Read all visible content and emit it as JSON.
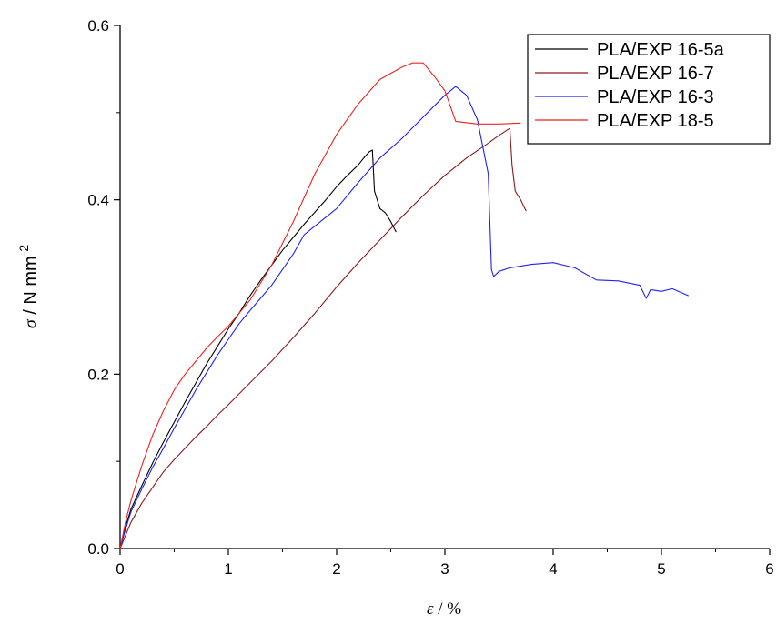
{
  "chart_data": {
    "type": "line",
    "title": "",
    "xlabel_symbol": "ε",
    "xlabel_rest": " / %",
    "ylabel_symbol": "σ",
    "ylabel_rest": " / N mm",
    "ylabel_exp": "-2",
    "xlim": [
      0,
      6
    ],
    "ylim": [
      0,
      0.6
    ],
    "x_ticks": [
      "0",
      "1",
      "2",
      "3",
      "4",
      "5",
      "6"
    ],
    "y_ticks": [
      "0.0",
      "0.2",
      "0.4",
      "0.6"
    ],
    "grid": false,
    "legend_position": "top-right",
    "series": [
      {
        "name": "PLA/EXP 16-5a",
        "color": "#000000",
        "x": [
          0,
          0.05,
          0.1,
          0.2,
          0.3,
          0.4,
          0.5,
          0.6,
          0.7,
          0.8,
          0.9,
          1.0,
          1.1,
          1.2,
          1.3,
          1.4,
          1.5,
          1.6,
          1.7,
          1.8,
          1.9,
          2.0,
          2.1,
          2.2,
          2.25,
          2.3,
          2.33,
          2.35,
          2.4,
          2.45,
          2.5,
          2.55
        ],
        "y": [
          0,
          0.025,
          0.045,
          0.072,
          0.098,
          0.122,
          0.145,
          0.168,
          0.19,
          0.212,
          0.232,
          0.252,
          0.27,
          0.29,
          0.308,
          0.325,
          0.342,
          0.357,
          0.372,
          0.386,
          0.4,
          0.415,
          0.428,
          0.44,
          0.448,
          0.455,
          0.457,
          0.41,
          0.39,
          0.385,
          0.375,
          0.363
        ]
      },
      {
        "name": "PLA/EXP 16-7",
        "color": "#8b1a1a",
        "x": [
          0,
          0.1,
          0.2,
          0.3,
          0.4,
          0.5,
          0.6,
          0.7,
          0.8,
          0.9,
          1.0,
          1.2,
          1.4,
          1.6,
          1.8,
          2.0,
          2.2,
          2.4,
          2.6,
          2.8,
          3.0,
          3.2,
          3.4,
          3.5,
          3.6,
          3.62,
          3.65,
          3.7,
          3.75
        ],
        "y": [
          0,
          0.03,
          0.052,
          0.07,
          0.088,
          0.102,
          0.115,
          0.128,
          0.14,
          0.153,
          0.165,
          0.19,
          0.215,
          0.242,
          0.27,
          0.3,
          0.328,
          0.354,
          0.38,
          0.405,
          0.428,
          0.448,
          0.465,
          0.474,
          0.482,
          0.44,
          0.41,
          0.4,
          0.387
        ]
      },
      {
        "name": "PLA/EXP 16-3",
        "color": "#1f22f5",
        "x": [
          0,
          0.05,
          0.1,
          0.2,
          0.3,
          0.4,
          0.5,
          0.6,
          0.7,
          0.8,
          0.9,
          1.0,
          1.1,
          1.2,
          1.4,
          1.6,
          1.7,
          1.8,
          2.0,
          2.2,
          2.4,
          2.6,
          2.8,
          3.0,
          3.1,
          3.2,
          3.3,
          3.4,
          3.43,
          3.45,
          3.5,
          3.6,
          3.8,
          4.0,
          4.2,
          4.4,
          4.6,
          4.8,
          4.86,
          4.9,
          5.0,
          5.1,
          5.25
        ],
        "y": [
          0,
          0.022,
          0.042,
          0.068,
          0.093,
          0.115,
          0.138,
          0.16,
          0.182,
          0.202,
          0.222,
          0.24,
          0.258,
          0.273,
          0.302,
          0.338,
          0.36,
          0.37,
          0.39,
          0.42,
          0.448,
          0.47,
          0.495,
          0.52,
          0.53,
          0.52,
          0.492,
          0.43,
          0.32,
          0.312,
          0.318,
          0.322,
          0.326,
          0.328,
          0.322,
          0.308,
          0.307,
          0.302,
          0.287,
          0.297,
          0.295,
          0.298,
          0.29
        ]
      },
      {
        "name": "PLA/EXP 18-5",
        "color": "#f02020",
        "x": [
          0,
          0.05,
          0.1,
          0.2,
          0.3,
          0.4,
          0.5,
          0.6,
          0.7,
          0.8,
          0.9,
          1.0,
          1.2,
          1.4,
          1.6,
          1.8,
          2.0,
          2.2,
          2.4,
          2.6,
          2.7,
          2.8,
          2.9,
          3.0,
          3.1,
          3.3,
          3.5,
          3.7
        ],
        "y": [
          0,
          0.03,
          0.055,
          0.095,
          0.13,
          0.158,
          0.182,
          0.2,
          0.215,
          0.23,
          0.243,
          0.255,
          0.285,
          0.325,
          0.375,
          0.43,
          0.475,
          0.51,
          0.538,
          0.552,
          0.557,
          0.557,
          0.542,
          0.525,
          0.49,
          0.487,
          0.487,
          0.488
        ]
      }
    ]
  }
}
